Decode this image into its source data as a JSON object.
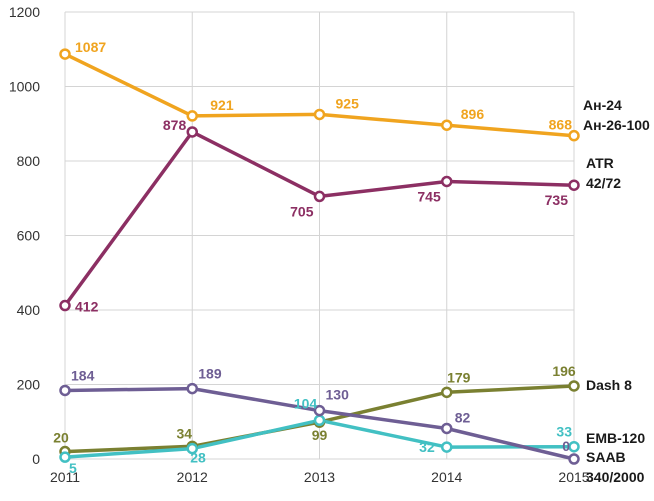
{
  "chart_data": {
    "type": "line",
    "x": [
      "2011",
      "2012",
      "2013",
      "2014",
      "2015"
    ],
    "ylim": [
      0,
      1200
    ],
    "yticks": [
      "0",
      "200",
      "400",
      "600",
      "800",
      "1000",
      "1200"
    ],
    "grid": true,
    "series": [
      {
        "name": "Ан-24 Ан-26-100",
        "label_lines": [
          "Ан-24",
          "Ан-26-100"
        ],
        "color": "#f0a41f",
        "values": [
          1087,
          921,
          925,
          896,
          868
        ],
        "point_labels": [
          "1087",
          "921",
          "925",
          "896",
          "868"
        ]
      },
      {
        "name": "ATR 42/72",
        "label_lines": [
          "ATR",
          "42/72"
        ],
        "color": "#8c2f63",
        "values": [
          412,
          878,
          705,
          745,
          735
        ],
        "point_labels": [
          "412",
          "878",
          "705",
          "745",
          "735"
        ]
      },
      {
        "name": "Dash 8",
        "label_lines": [
          "Dash 8"
        ],
        "color": "#7a8031",
        "values": [
          20,
          34,
          99,
          179,
          196
        ],
        "point_labels": [
          "20",
          "34",
          "99",
          "179",
          "196"
        ]
      },
      {
        "name": "EMB-120",
        "label_lines": [
          "EMB-120"
        ],
        "color": "#42c0c3",
        "values": [
          5,
          28,
          104,
          32,
          33
        ],
        "point_labels": [
          "5",
          "28",
          "104",
          "32",
          "33"
        ]
      },
      {
        "name": "SAAB 340/2000",
        "label_lines": [
          "SAAB",
          "340/2000"
        ],
        "color": "#6e5e94",
        "values": [
          184,
          189,
          130,
          82,
          0
        ],
        "point_labels": [
          "184",
          "189",
          "130",
          "82",
          "0"
        ]
      }
    ]
  }
}
